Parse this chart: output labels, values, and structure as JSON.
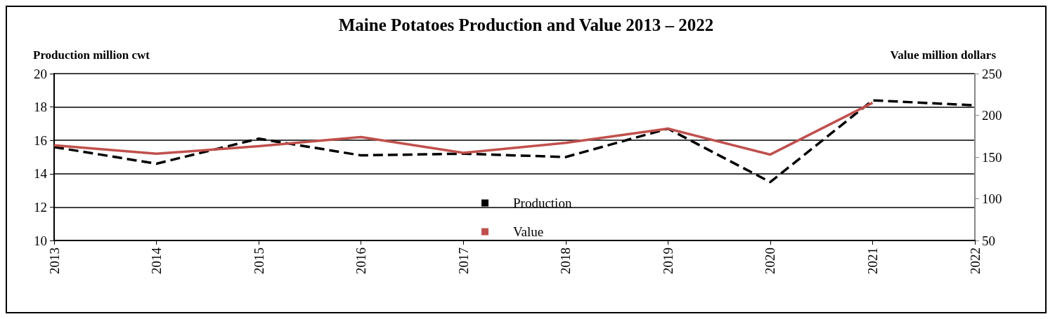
{
  "chart_data": {
    "type": "line",
    "title": "Maine Potatoes Production and Value 2013 – 2022",
    "ylabel": "Production million cwt",
    "y2label": "Value million dollars",
    "categories": [
      "2013",
      "2014",
      "2015",
      "2016",
      "2017",
      "2018",
      "2019",
      "2020",
      "2021",
      "2022"
    ],
    "series": [
      {
        "name": "Production",
        "color": "#000000",
        "line_style": "dashed",
        "values": [
          15.6,
          14.6,
          16.1,
          15.1,
          15.2,
          15.0,
          16.7,
          13.5,
          18.4,
          18.1
        ]
      },
      {
        "name": "Value",
        "color": "#c0504d",
        "line_style": "solid",
        "axis": "y2",
        "values": [
          164,
          154,
          163,
          174,
          155,
          167,
          184,
          153,
          215,
          null
        ]
      }
    ],
    "ylim": [
      10,
      20
    ],
    "yticks": [
      10,
      12,
      14,
      16,
      18,
      20
    ],
    "y2lim": [
      50,
      250
    ],
    "y2ticks": [
      50,
      100,
      150,
      200,
      250
    ],
    "grid": "y",
    "legend": "bottom",
    "marker": "none"
  }
}
